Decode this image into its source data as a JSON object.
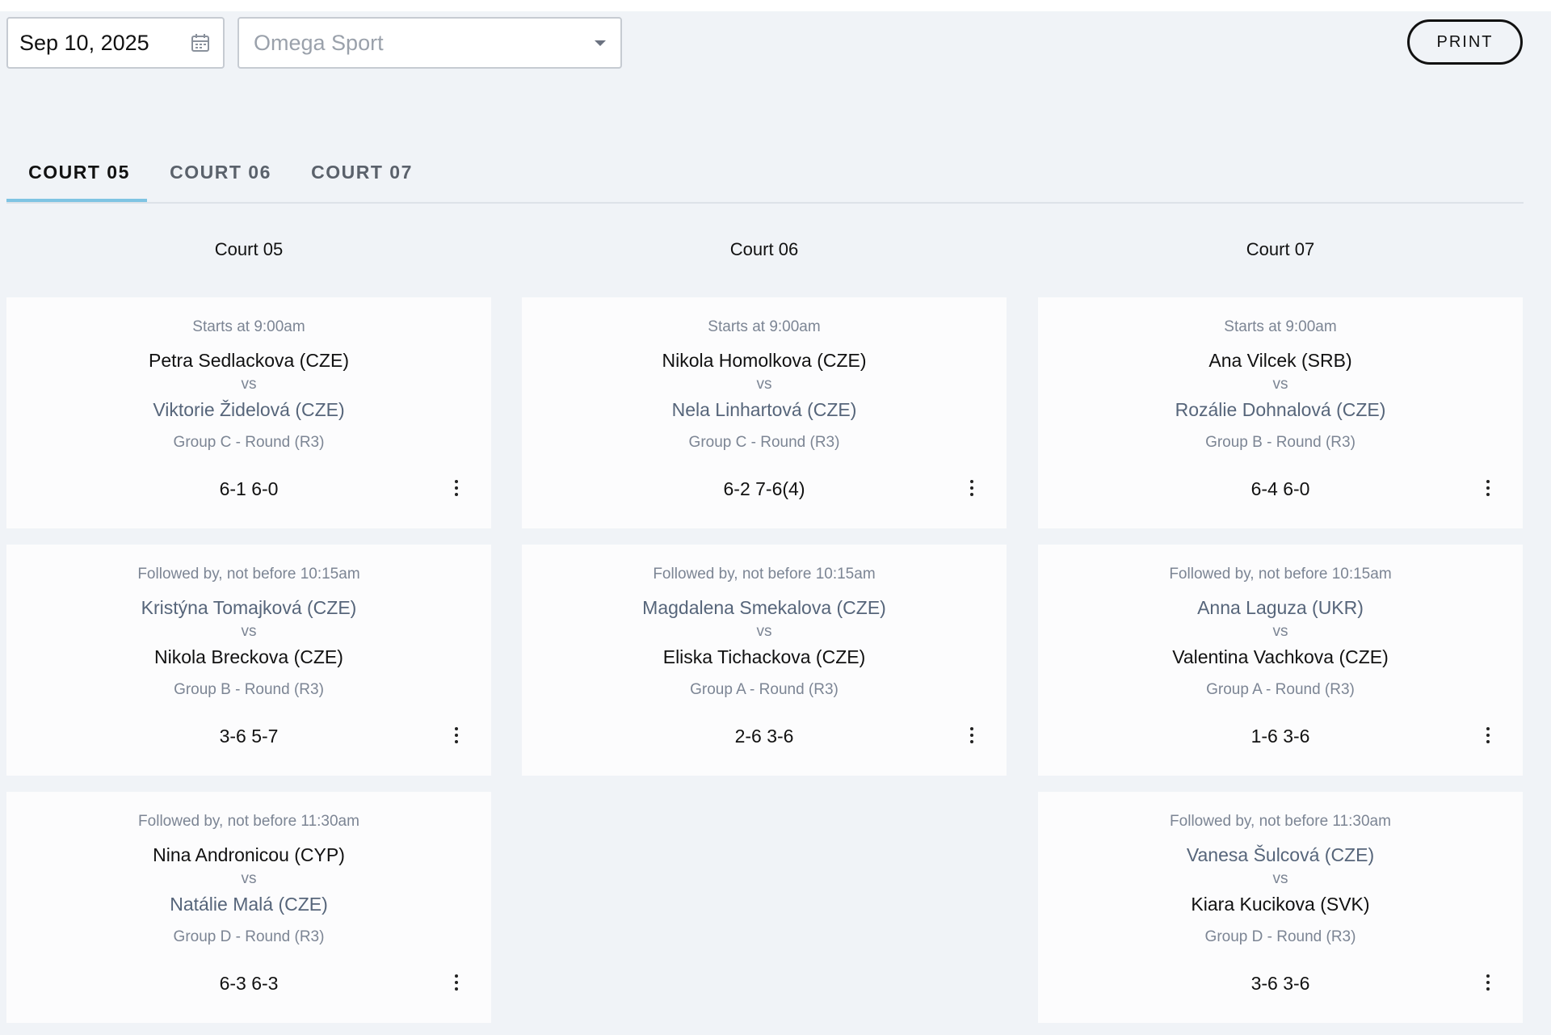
{
  "toolbar": {
    "date_value": "Sep 10, 2025",
    "calendar_icon": "calendar-icon",
    "venue_placeholder": "Omega Sport",
    "dropdown_icon": "caret-down-icon",
    "print_label": "PRINT"
  },
  "tabs": [
    {
      "label": "COURT 05",
      "active": true
    },
    {
      "label": "COURT 06",
      "active": false
    },
    {
      "label": "COURT 07",
      "active": false
    }
  ],
  "accent_color": "#7fc4e3",
  "columns": [
    {
      "title": "Court 05",
      "matches": [
        {
          "when": "Starts at 9:00am",
          "player1": "Petra Sedlackova (CZE)",
          "player1_style": "dark",
          "vs": "vs",
          "player2": "Viktorie Židelová (CZE)",
          "player2_style": "blue",
          "group": "Group C - Round (R3)",
          "score": "6-1 6-0"
        },
        {
          "when": "Followed by, not before 10:15am",
          "player1": "Kristýna Tomajková (CZE)",
          "player1_style": "blue",
          "vs": "vs",
          "player2": "Nikola Breckova (CZE)",
          "player2_style": "dark",
          "group": "Group B - Round (R3)",
          "score": "3-6 5-7"
        },
        {
          "when": "Followed by, not before 11:30am",
          "player1": "Nina Andronicou (CYP)",
          "player1_style": "dark",
          "vs": "vs",
          "player2": "Natálie Malá (CZE)",
          "player2_style": "blue",
          "group": "Group D - Round (R3)",
          "score": "6-3 6-3"
        }
      ]
    },
    {
      "title": "Court 06",
      "matches": [
        {
          "when": "Starts at 9:00am",
          "player1": "Nikola Homolkova (CZE)",
          "player1_style": "dark",
          "vs": "vs",
          "player2": "Nela Linhartová (CZE)",
          "player2_style": "blue",
          "group": "Group C - Round (R3)",
          "score": "6-2 7-6(4)"
        },
        {
          "when": "Followed by, not before 10:15am",
          "player1": "Magdalena Smekalova (CZE)",
          "player1_style": "blue",
          "vs": "vs",
          "player2": "Eliska Tichackova (CZE)",
          "player2_style": "dark",
          "group": "Group A - Round (R3)",
          "score": "2-6 3-6"
        }
      ]
    },
    {
      "title": "Court 07",
      "matches": [
        {
          "when": "Starts at 9:00am",
          "player1": "Ana Vilcek (SRB)",
          "player1_style": "dark",
          "vs": "vs",
          "player2": "Rozálie Dohnalová (CZE)",
          "player2_style": "blue",
          "group": "Group B - Round (R3)",
          "score": "6-4 6-0"
        },
        {
          "when": "Followed by, not before 10:15am",
          "player1": "Anna Laguza (UKR)",
          "player1_style": "blue",
          "vs": "vs",
          "player2": "Valentina Vachkova (CZE)",
          "player2_style": "dark",
          "group": "Group A - Round (R3)",
          "score": "1-6 3-6"
        },
        {
          "when": "Followed by, not before 11:30am",
          "player1": "Vanesa Šulcová (CZE)",
          "player1_style": "blue",
          "vs": "vs",
          "player2": "Kiara Kucikova (SVK)",
          "player2_style": "dark",
          "group": "Group D - Round (R3)",
          "score": "3-6 3-6"
        }
      ]
    }
  ]
}
